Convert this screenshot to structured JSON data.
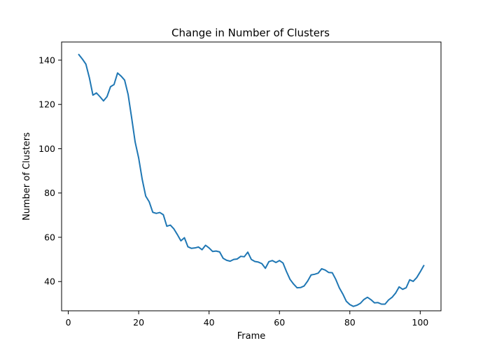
{
  "chart_data": {
    "type": "line",
    "title": "Change in Number of Clusters",
    "xlabel": "Frame",
    "ylabel": "Number of Clusters",
    "xlim": [
      -1.9,
      105.9
    ],
    "ylim": [
      26.8,
      148.2
    ],
    "xticks": [
      0,
      20,
      40,
      60,
      80,
      100
    ],
    "yticks": [
      40,
      60,
      80,
      100,
      120,
      140
    ],
    "grid": false,
    "series_color": "#1f77b4",
    "series": [
      {
        "x": [
          3,
          4,
          5,
          6,
          7,
          8,
          9,
          10,
          11,
          12,
          13,
          14,
          15,
          16,
          17,
          18,
          19,
          20,
          21,
          22,
          23,
          24,
          25,
          26,
          27,
          28,
          29,
          30,
          31,
          32,
          33,
          34,
          35,
          36,
          37,
          38,
          39,
          40,
          41,
          42,
          43,
          44,
          45,
          46,
          47,
          48,
          49,
          50,
          51,
          52,
          53,
          54,
          55,
          56,
          57,
          58,
          59,
          60,
          61,
          62,
          63,
          64,
          65,
          66,
          67,
          68,
          69,
          70,
          71,
          72,
          73,
          74,
          75,
          76,
          77,
          78,
          79,
          80,
          81,
          82,
          83,
          84,
          85,
          86,
          87,
          88,
          89,
          90,
          91,
          92,
          93,
          94,
          95,
          96,
          97,
          98,
          99,
          100,
          101
        ],
        "y": [
          142.5,
          140.5,
          138.2,
          132,
          124.2,
          125.2,
          123.5,
          121.6,
          123.5,
          128,
          129,
          134.2,
          132.8,
          131,
          124.5,
          114,
          103,
          95.8,
          86.2,
          78.6,
          76,
          71.3,
          70.8,
          71.2,
          70.2,
          65,
          65.5,
          63.8,
          61.2,
          58.4,
          59.8,
          55.7,
          55,
          55.2,
          55.6,
          54.4,
          56.4,
          55.2,
          53.6,
          53.8,
          53.4,
          50.5,
          49.6,
          49.2,
          50,
          50.2,
          51.4,
          51.2,
          53.3,
          50,
          49.1,
          48.8,
          48.1,
          46,
          49,
          49.5,
          48.6,
          49.5,
          48.4,
          44.5,
          41,
          38.9,
          37.2,
          37.3,
          38,
          40.2,
          43,
          43.3,
          43.8,
          45.8,
          45.2,
          44.1,
          44,
          41,
          37.2,
          34.4,
          31.1,
          29.6,
          28.8,
          29.3,
          30.2,
          31.9,
          32.9,
          31.8,
          30.4,
          30.5,
          29.8,
          29.8,
          31.7,
          32.9,
          34.8,
          37.6,
          36.5,
          37.2,
          40.8,
          40.1,
          41.8,
          44.4,
          47.2
        ]
      }
    ]
  }
}
